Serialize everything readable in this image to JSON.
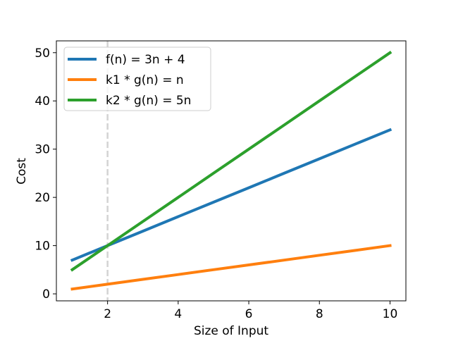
{
  "chart_data": {
    "type": "line",
    "title": "",
    "xlabel": "Size of Input",
    "ylabel": "Cost",
    "x": [
      1,
      2,
      3,
      4,
      5,
      6,
      7,
      8,
      9,
      10
    ],
    "series": [
      {
        "name": "f(n) = 3n + 4",
        "color": "#1f77b4",
        "values": [
          7,
          10,
          13,
          16,
          19,
          22,
          25,
          28,
          31,
          34
        ]
      },
      {
        "name": "k1 * g(n) = n",
        "color": "#ff7f0e",
        "values": [
          1,
          2,
          3,
          4,
          5,
          6,
          7,
          8,
          9,
          10
        ]
      },
      {
        "name": "k2 * g(n) = 5n",
        "color": "#2ca02c",
        "values": [
          5,
          10,
          15,
          20,
          25,
          30,
          35,
          40,
          45,
          50
        ]
      }
    ],
    "annotations": [
      {
        "type": "vline",
        "x": 2,
        "style": "dashed",
        "color": "#d3d3d3"
      }
    ],
    "xticks": [
      "2",
      "4",
      "6",
      "8",
      "10"
    ],
    "yticks": [
      "0",
      "10",
      "20",
      "30",
      "40",
      "50"
    ],
    "xlim": [
      0.55,
      10.45
    ],
    "ylim": [
      -1.45,
      52.45
    ],
    "grid": false,
    "legend_position": "upper left"
  }
}
